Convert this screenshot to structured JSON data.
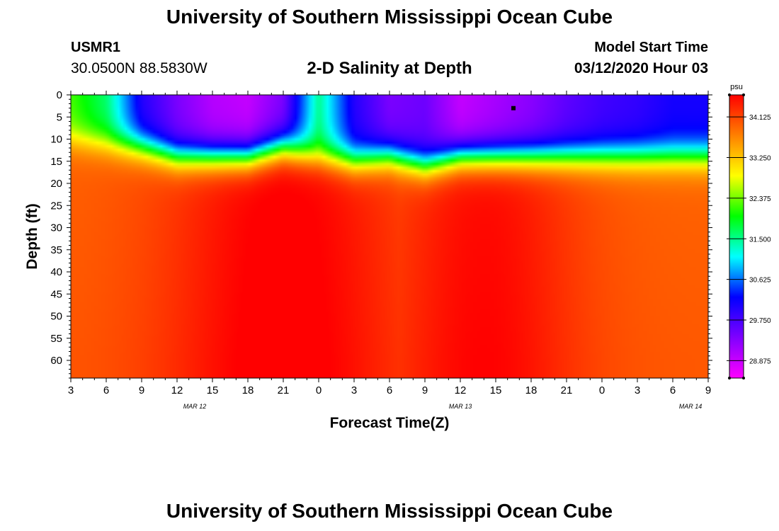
{
  "header": {
    "title": "University of Southern Mississippi Ocean Cube",
    "station_id": "USMR1",
    "coordinates": "30.0500N 88.5830W",
    "plot_title": "2-D Salinity at Depth",
    "model_start_label": "Model Start Time",
    "model_start_time": "03/12/2020 Hour 03"
  },
  "footer": {
    "title": "University of Southern Mississippi Ocean Cube"
  },
  "chart_data": {
    "type": "heatmap",
    "title": "2-D Salinity at Depth",
    "xlabel": "Forecast Time(Z)",
    "ylabel": "Depth (ft)",
    "x_tick_labels": [
      "3",
      "6",
      "9",
      "12",
      "15",
      "18",
      "21",
      "0",
      "3",
      "6",
      "9",
      "12",
      "15",
      "18",
      "21",
      "0",
      "3",
      "6",
      "9"
    ],
    "date_labels": [
      {
        "label": "MAR 12",
        "after_tick": "15"
      },
      {
        "label": "MAR 13",
        "after_tick": "0"
      },
      {
        "label": "MAR 14",
        "after_tick": "3"
      }
    ],
    "y_ticks": [
      0,
      5,
      10,
      15,
      20,
      25,
      30,
      35,
      40,
      45,
      50,
      55,
      60
    ],
    "xlim_forecast_hours": [
      0,
      54
    ],
    "ylim": [
      0,
      64
    ],
    "y_inverted": true,
    "colorbar": {
      "unit": "psu",
      "range": [
        28.5,
        34.6
      ],
      "tick_labels": [
        "34.125",
        "33.250",
        "32.375",
        "31.500",
        "30.625",
        "29.750",
        "28.875"
      ],
      "colors": [
        "#ff00ff",
        "#8000ff",
        "#0000ff",
        "#00ffff",
        "#00ff00",
        "#ffff00",
        "#ff8000",
        "#ff0000"
      ]
    },
    "surface_profile": [
      {
        "t": 0,
        "s": 32.2,
        "d": 8
      },
      {
        "t": 3,
        "s": 31.6,
        "d": 9
      },
      {
        "t": 6,
        "s": 30.0,
        "d": 10
      },
      {
        "t": 9,
        "s": 29.4,
        "d": 12
      },
      {
        "t": 12,
        "s": 29.0,
        "d": 12
      },
      {
        "t": 15,
        "s": 28.9,
        "d": 12
      },
      {
        "t": 18,
        "s": 29.4,
        "d": 10
      },
      {
        "t": 21,
        "s": 31.5,
        "d": 12
      },
      {
        "t": 24,
        "s": 30.0,
        "d": 13
      },
      {
        "t": 27,
        "s": 29.4,
        "d": 12
      },
      {
        "t": 30,
        "s": 29.5,
        "d": 14
      },
      {
        "t": 33,
        "s": 28.9,
        "d": 12
      },
      {
        "t": 36,
        "s": 29.1,
        "d": 12
      },
      {
        "t": 39,
        "s": 29.3,
        "d": 12
      },
      {
        "t": 42,
        "s": 29.6,
        "d": 12
      },
      {
        "t": 45,
        "s": 29.8,
        "d": 12
      },
      {
        "t": 48,
        "s": 29.9,
        "d": 12
      },
      {
        "t": 51,
        "s": 30.1,
        "d": 12
      },
      {
        "t": 54,
        "s": 30.1,
        "d": 12
      }
    ],
    "marker": {
      "t": 37.5,
      "depth": 3
    }
  }
}
